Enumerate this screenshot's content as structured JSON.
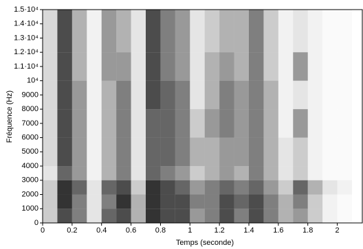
{
  "chart_data": {
    "type": "heatmap",
    "xlabel": "Temps (seconde)",
    "ylabel": "Fréquence (Hz)",
    "color": "#000000",
    "x": [
      0,
      0.1,
      0.2,
      0.3,
      0.4,
      0.5,
      0.6,
      0.7,
      0.8,
      0.9,
      1.0,
      1.1,
      1.2,
      1.3,
      1.4,
      1.5,
      1.6,
      1.7,
      1.8,
      1.9,
      2.0,
      2.1
    ],
    "y": [
      0,
      1000,
      2000,
      3000,
      4000,
      6000,
      8000,
      10000,
      12000,
      15000
    ],
    "values": [
      [
        0.2,
        0.2,
        0.2,
        0.1,
        0.15,
        0.15,
        0.15,
        0.15,
        0.15
      ],
      [
        0.7,
        0.8,
        0.8,
        0.6,
        0.7,
        0.7,
        0.7,
        0.7,
        0.7
      ],
      [
        0.5,
        0.5,
        0.6,
        0.4,
        0.4,
        0.4,
        0.4,
        0.3,
        0.3
      ],
      [
        0.1,
        0.1,
        0.1,
        0.05,
        0.05,
        0.05,
        0.05,
        0.05,
        0.05
      ],
      [
        0.6,
        0.5,
        0.6,
        0.3,
        0.3,
        0.3,
        0.3,
        0.4,
        0.4
      ],
      [
        0.7,
        0.8,
        0.7,
        0.5,
        0.5,
        0.5,
        0.5,
        0.4,
        0.3
      ],
      [
        0.3,
        0.3,
        0.2,
        0.1,
        0.1,
        0.1,
        0.1,
        0.1,
        0.1
      ],
      [
        0.8,
        0.8,
        0.8,
        0.6,
        0.6,
        0.6,
        0.7,
        0.7,
        0.7
      ],
      [
        0.7,
        0.7,
        0.7,
        0.5,
        0.6,
        0.6,
        0.6,
        0.5,
        0.5
      ],
      [
        0.7,
        0.7,
        0.6,
        0.4,
        0.5,
        0.5,
        0.5,
        0.4,
        0.4
      ],
      [
        0.4,
        0.5,
        0.4,
        0.2,
        0.3,
        0.2,
        0.1,
        0.1,
        0.1
      ],
      [
        0.5,
        0.5,
        0.5,
        0.3,
        0.3,
        0.4,
        0.3,
        0.3,
        0.2
      ],
      [
        0.7,
        0.7,
        0.6,
        0.4,
        0.4,
        0.5,
        0.5,
        0.4,
        0.3
      ],
      [
        0.5,
        0.6,
        0.5,
        0.3,
        0.4,
        0.4,
        0.4,
        0.3,
        0.3
      ],
      [
        0.7,
        0.7,
        0.6,
        0.5,
        0.5,
        0.5,
        0.5,
        0.5,
        0.5
      ],
      [
        0.5,
        0.5,
        0.4,
        0.3,
        0.3,
        0.3,
        0.3,
        0.2,
        0.2
      ],
      [
        0.3,
        0.3,
        0.2,
        0.1,
        0.1,
        0.05,
        0.05,
        0.05,
        0.05
      ],
      [
        0.4,
        0.5,
        0.6,
        0.2,
        0.2,
        0.4,
        0.1,
        0.4,
        0.1
      ],
      [
        0.2,
        0.2,
        0.3,
        0.05,
        0.05,
        0.05,
        0.05,
        0.05,
        0.05
      ],
      [
        0.05,
        0.05,
        0.1,
        0.02,
        0.02,
        0.02,
        0.02,
        0.02,
        0.02
      ],
      [
        0.02,
        0.02,
        0.05,
        0.02,
        0.02,
        0.02,
        0.02,
        0.02,
        0.02
      ]
    ],
    "xlim": [
      0,
      2.17
    ],
    "xticks": [
      0,
      0.2,
      0.4,
      0.6,
      0.8,
      1,
      1.2,
      1.4,
      1.6,
      1.8,
      2
    ],
    "ylim": [
      0,
      15000
    ],
    "yticks": [
      0,
      1000,
      2000,
      3000,
      4000,
      5000,
      6000,
      7000,
      8000,
      9000,
      {
        "value": 10000,
        "label": "10⁴"
      },
      {
        "value": 11000,
        "label": "1.1·10⁴"
      },
      {
        "value": 12000,
        "label": "1.2·10⁴"
      },
      {
        "value": 13000,
        "label": "1.3·10⁴"
      },
      {
        "value": 14000,
        "label": "1.4·10⁴"
      },
      {
        "value": 15000,
        "label": "1.5·10⁴"
      }
    ]
  }
}
